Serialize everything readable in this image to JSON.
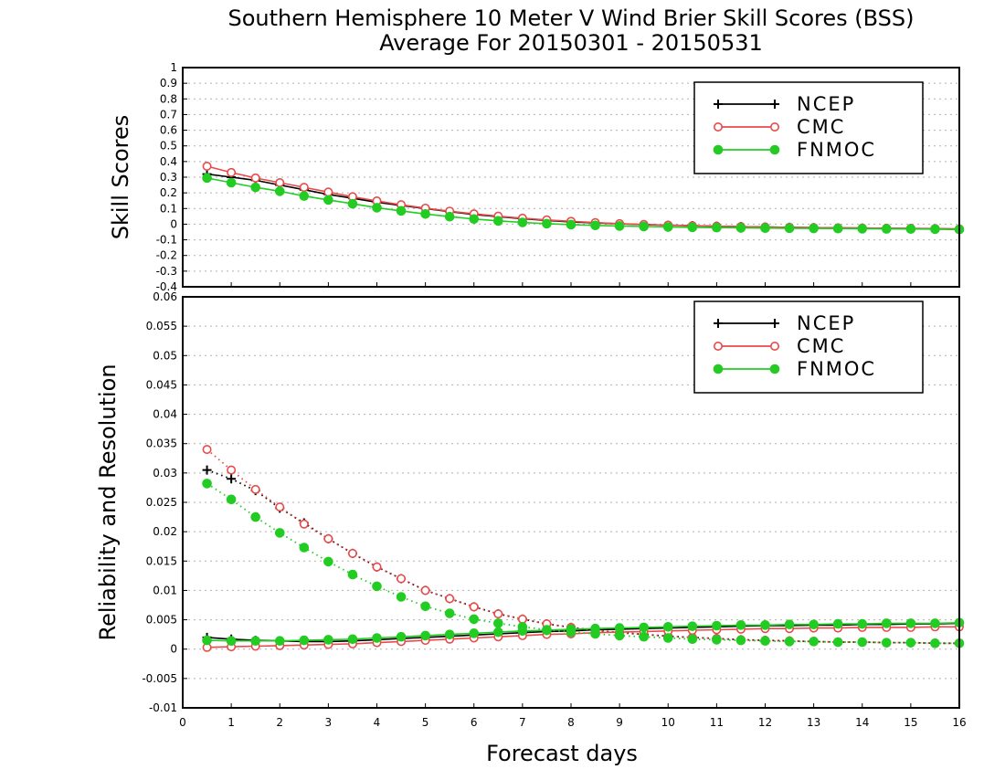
{
  "title_line1": "Southern Hemisphere 10 Meter V Wind Brier Skill Scores (BSS)",
  "title_line2": "Average For 20150301 - 20150531",
  "colors": {
    "NCEP": "#000000",
    "CMC": "#e84a4a",
    "FNMOC": "#22cc22"
  },
  "chart_data": [
    {
      "type": "line",
      "ylabel": "Skill Scores",
      "xlim": [
        0,
        16
      ],
      "ylim": [
        -0.4,
        1
      ],
      "yticks": [
        "-0.4",
        "-0.3",
        "-0.2",
        "-0.1",
        "0",
        "0.1",
        "0.2",
        "0.3",
        "0.4",
        "0.5",
        "0.6",
        "0.7",
        "0.8",
        "0.9",
        "1"
      ],
      "ytick_values": [
        -0.4,
        -0.3,
        -0.2,
        -0.1,
        0,
        0.1,
        0.2,
        0.3,
        0.4,
        0.5,
        0.6,
        0.7,
        0.8,
        0.9,
        1
      ],
      "grid": true,
      "legend_position": "top-right",
      "x": [
        0.5,
        1,
        1.5,
        2,
        2.5,
        3,
        3.5,
        4,
        4.5,
        5,
        5.5,
        6,
        6.5,
        7,
        7.5,
        8,
        8.5,
        9,
        9.5,
        10,
        10.5,
        11,
        11.5,
        12,
        12.5,
        13,
        13.5,
        14,
        14.5,
        15,
        15.5,
        16
      ],
      "series": [
        {
          "name": "NCEP",
          "marker": "plus",
          "style": "solid",
          "values": [
            0.32,
            0.3,
            0.28,
            0.25,
            0.22,
            0.19,
            0.165,
            0.14,
            0.12,
            0.1,
            0.08,
            0.062,
            0.048,
            0.035,
            0.024,
            0.015,
            0.008,
            0.002,
            -0.003,
            -0.007,
            -0.01,
            -0.013,
            -0.016,
            -0.018,
            -0.02,
            -0.022,
            -0.024,
            -0.025,
            -0.027,
            -0.028,
            -0.03,
            -0.032
          ]
        },
        {
          "name": "CMC",
          "marker": "open-circle",
          "style": "solid",
          "values": [
            0.37,
            0.33,
            0.295,
            0.265,
            0.235,
            0.205,
            0.175,
            0.148,
            0.124,
            0.102,
            0.083,
            0.066,
            0.051,
            0.038,
            0.027,
            0.018,
            0.01,
            0.003,
            -0.002,
            -0.006,
            -0.01,
            -0.013,
            -0.016,
            -0.018,
            -0.02,
            -0.022,
            -0.024,
            -0.025,
            -0.026,
            -0.027,
            -0.028,
            -0.03
          ]
        },
        {
          "name": "FNMOC",
          "marker": "filled-circle",
          "style": "solid",
          "values": [
            0.295,
            0.265,
            0.235,
            0.21,
            0.18,
            0.155,
            0.13,
            0.105,
            0.085,
            0.065,
            0.048,
            0.033,
            0.021,
            0.011,
            0.003,
            -0.003,
            -0.008,
            -0.012,
            -0.015,
            -0.018,
            -0.02,
            -0.022,
            -0.024,
            -0.025,
            -0.026,
            -0.027,
            -0.028,
            -0.029,
            -0.03,
            -0.031,
            -0.032,
            -0.034
          ]
        }
      ]
    },
    {
      "type": "line",
      "ylabel": "Reliability and Resolution",
      "xlabel": "Forecast days",
      "xlim": [
        0,
        16
      ],
      "ylim": [
        -0.01,
        0.06
      ],
      "xticks": [
        "0",
        "1",
        "2",
        "3",
        "4",
        "5",
        "6",
        "7",
        "8",
        "9",
        "10",
        "11",
        "12",
        "13",
        "14",
        "15",
        "16"
      ],
      "yticks": [
        "-0.01",
        "-0.005",
        "0",
        "0.005",
        "0.01",
        "0.015",
        "0.02",
        "0.025",
        "0.03",
        "0.035",
        "0.04",
        "0.045",
        "0.05",
        "0.055",
        "0.06"
      ],
      "ytick_values": [
        -0.01,
        -0.005,
        0,
        0.005,
        0.01,
        0.015,
        0.02,
        0.025,
        0.03,
        0.035,
        0.04,
        0.045,
        0.05,
        0.055,
        0.06
      ],
      "grid": true,
      "legend_position": "top-right",
      "x": [
        0.5,
        1,
        1.5,
        2,
        2.5,
        3,
        3.5,
        4,
        4.5,
        5,
        5.5,
        6,
        6.5,
        7,
        7.5,
        8,
        8.5,
        9,
        9.5,
        10,
        10.5,
        11,
        11.5,
        12,
        12.5,
        13,
        13.5,
        14,
        14.5,
        15,
        15.5,
        16
      ],
      "series": [
        {
          "name": "NCEP",
          "marker": "plus",
          "style": "dotted",
          "values": [
            0.0305,
            0.029,
            0.027,
            0.024,
            0.0215,
            0.0188,
            0.0163,
            0.014,
            0.012,
            0.01,
            0.0086,
            0.0072,
            0.006,
            0.0051,
            0.0043,
            0.0037,
            0.0032,
            0.0028,
            0.0025,
            0.0022,
            0.002,
            0.0018,
            0.0016,
            0.0015,
            0.0014,
            0.0013,
            0.0012,
            0.0012,
            0.0011,
            0.0011,
            0.001,
            0.001
          ]
        },
        {
          "name": "NCEP",
          "marker": "plus",
          "style": "solid",
          "values": [
            0.002,
            0.0017,
            0.0015,
            0.0014,
            0.0013,
            0.0013,
            0.0014,
            0.0016,
            0.0018,
            0.002,
            0.0022,
            0.0024,
            0.0026,
            0.0028,
            0.003,
            0.0031,
            0.0033,
            0.0034,
            0.0035,
            0.0036,
            0.0037,
            0.0038,
            0.0039,
            0.004,
            0.004,
            0.0041,
            0.0041,
            0.0042,
            0.0042,
            0.0043,
            0.0043,
            0.0044
          ]
        },
        {
          "name": "CMC",
          "marker": "open-circle",
          "style": "dotted",
          "values": [
            0.034,
            0.0305,
            0.0272,
            0.0242,
            0.0213,
            0.0188,
            0.0163,
            0.014,
            0.012,
            0.01,
            0.0086,
            0.0072,
            0.006,
            0.0051,
            0.0043,
            0.0037,
            0.0032,
            0.0028,
            0.0025,
            0.0022,
            0.002,
            0.0018,
            0.0016,
            0.0015,
            0.0014,
            0.0013,
            0.0012,
            0.0012,
            0.0011,
            0.0011,
            0.001,
            0.001
          ]
        },
        {
          "name": "CMC",
          "marker": "open-circle",
          "style": "solid",
          "values": [
            0.0003,
            0.0004,
            0.0005,
            0.0006,
            0.0007,
            0.0008,
            0.0009,
            0.0011,
            0.0013,
            0.0015,
            0.0017,
            0.0019,
            0.0021,
            0.0023,
            0.0025,
            0.0026,
            0.0028,
            0.0029,
            0.003,
            0.0031,
            0.0032,
            0.0033,
            0.0034,
            0.0035,
            0.0035,
            0.0036,
            0.0036,
            0.0037,
            0.0037,
            0.0037,
            0.0038,
            0.0038
          ]
        },
        {
          "name": "FNMOC",
          "marker": "filled-circle",
          "style": "dotted",
          "values": [
            0.0282,
            0.0255,
            0.0225,
            0.0198,
            0.0173,
            0.0149,
            0.0127,
            0.0107,
            0.0089,
            0.0073,
            0.0061,
            0.0051,
            0.0044,
            0.0038,
            0.0033,
            0.0029,
            0.0026,
            0.0023,
            0.0021,
            0.0019,
            0.0017,
            0.0016,
            0.0015,
            0.0014,
            0.0013,
            0.0013,
            0.0012,
            0.0012,
            0.0011,
            0.0011,
            0.001,
            0.001
          ]
        },
        {
          "name": "FNMOC",
          "marker": "filled-circle",
          "style": "solid",
          "values": [
            0.0015,
            0.0014,
            0.0014,
            0.0014,
            0.0015,
            0.0016,
            0.0017,
            0.0019,
            0.0021,
            0.0023,
            0.0025,
            0.0027,
            0.0029,
            0.0031,
            0.0032,
            0.0034,
            0.0035,
            0.0036,
            0.0037,
            0.0038,
            0.0039,
            0.004,
            0.0041,
            0.0041,
            0.0042,
            0.0042,
            0.0043,
            0.0043,
            0.0044,
            0.0044,
            0.0044,
            0.0045
          ]
        }
      ]
    }
  ]
}
